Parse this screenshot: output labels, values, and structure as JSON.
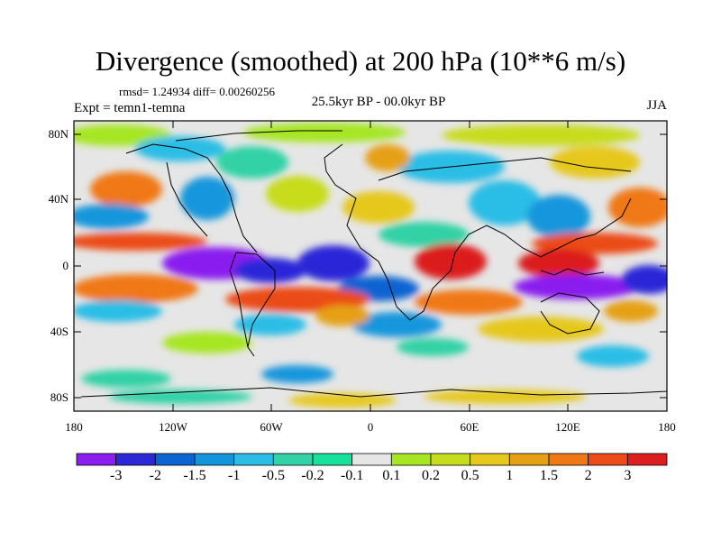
{
  "title": "Divergence (smoothed) at 200 hPa (10**6 m/s)",
  "stats": "rmsd= 1.24934 diff= 0.00260256",
  "experiment": "Expt = temn1-temna",
  "period": "25.5kyr BP - 00.0kyr BP",
  "season": "JJA",
  "axes": {
    "y_ticks": [
      "80N",
      "40N",
      "0",
      "40S",
      "80S"
    ],
    "x_ticks": [
      "180",
      "120W",
      "60W",
      "0",
      "60E",
      "120E",
      "180"
    ]
  },
  "colorbar": {
    "colors": [
      "#8a1ff0",
      "#2b28d8",
      "#0a64d2",
      "#1496dc",
      "#2cbde6",
      "#32d2a6",
      "#16e29c",
      "#e6e6e6",
      "#a6e623",
      "#c8dc1e",
      "#e6c81e",
      "#e6a016",
      "#f07814",
      "#eb4b19",
      "#dc1e1e"
    ],
    "labels": [
      "-3",
      "-2",
      "-1.5",
      "-1",
      "-0.5",
      "-0.2",
      "-0.1",
      "0.1",
      "0.2",
      "0.5",
      "1",
      "1.5",
      "2",
      "3"
    ]
  }
}
